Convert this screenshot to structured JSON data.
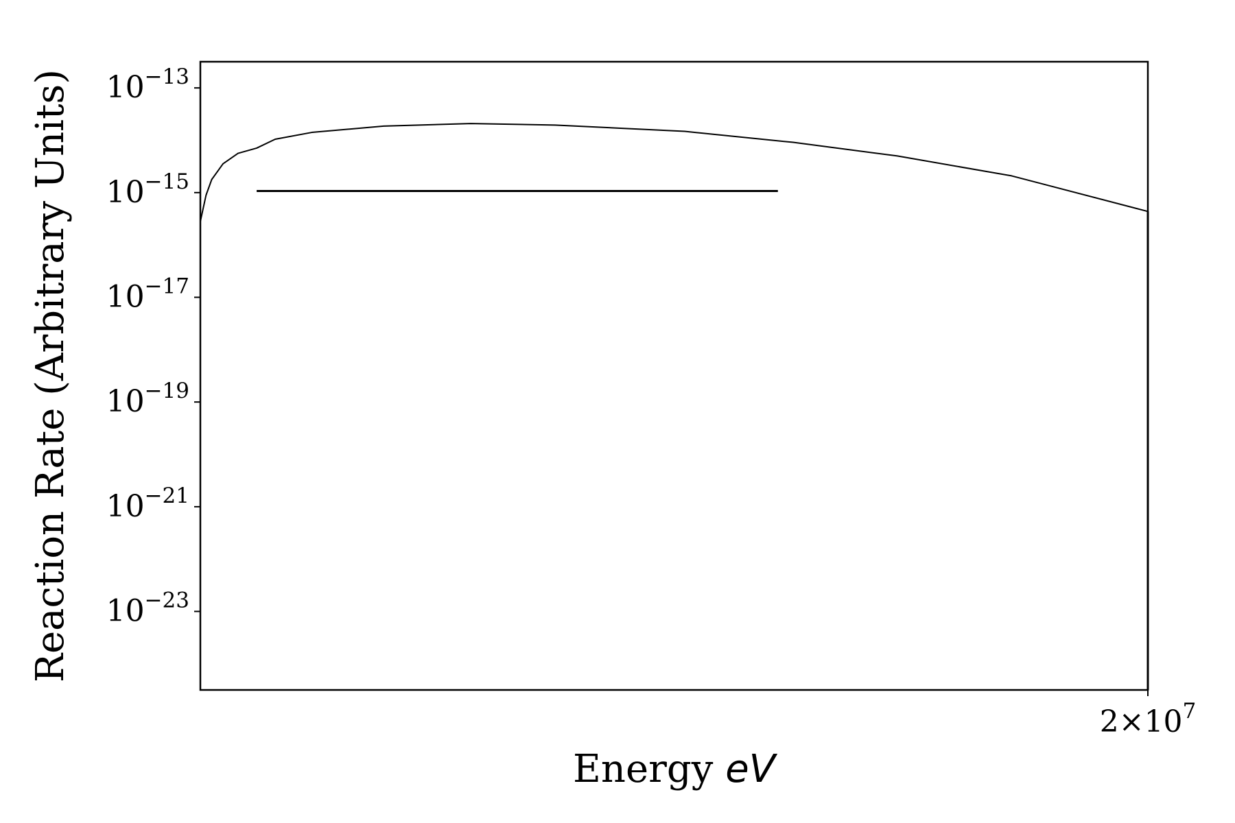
{
  "chart_data": {
    "type": "line",
    "title": "",
    "xlabel_text": "Energy",
    "xlabel_unit": "eV",
    "ylabel": "Reaction Rate (Arbitrary Units)",
    "x_scale": "log",
    "y_scale": "log",
    "xlim": [
      14000000,
      20000000
    ],
    "ylim_exponent": [
      -24.5,
      -12.5
    ],
    "x_ticks": [
      {
        "value": 20000000,
        "mantissa": "2",
        "times": "×",
        "base": "10",
        "exp": "7"
      }
    ],
    "y_ticks": [
      {
        "exponent": -13,
        "base": "10",
        "label": "−13"
      },
      {
        "exponent": -15,
        "base": "10",
        "label": "−15"
      },
      {
        "exponent": -17,
        "base": "10",
        "label": "−17"
      },
      {
        "exponent": -19,
        "base": "10",
        "label": "−19"
      },
      {
        "exponent": -21,
        "base": "10",
        "label": "−21"
      },
      {
        "exponent": -23,
        "base": "10",
        "label": "−23"
      }
    ],
    "series": [
      {
        "kind": "curve",
        "color": "#000000",
        "points": [
          {
            "x": 14000000,
            "log10_y": -15.55
          },
          {
            "x": 14030000,
            "log10_y": -15.05
          },
          {
            "x": 14060000,
            "log10_y": -14.75
          },
          {
            "x": 14120000,
            "log10_y": -14.45
          },
          {
            "x": 14200000,
            "log10_y": -14.25
          },
          {
            "x": 14300000,
            "log10_y": -14.15
          },
          {
            "x": 14400000,
            "log10_y": -13.98
          },
          {
            "x": 14600000,
            "log10_y": -13.85
          },
          {
            "x": 15000000,
            "log10_y": -13.73
          },
          {
            "x": 15500000,
            "log10_y": -13.68
          },
          {
            "x": 16000000,
            "log10_y": -13.71
          },
          {
            "x": 16800000,
            "log10_y": -13.83
          },
          {
            "x": 17500000,
            "log10_y": -14.04
          },
          {
            "x": 18200000,
            "log10_y": -14.3
          },
          {
            "x": 19000000,
            "log10_y": -14.68
          },
          {
            "x": 20000000,
            "log10_y": -15.36
          }
        ]
      },
      {
        "kind": "vertical-drop",
        "color": "#000000",
        "points": [
          {
            "x": 20000000,
            "log10_y": -15.36
          },
          {
            "x": 20000000,
            "log10_y": -24.5
          }
        ]
      },
      {
        "kind": "horizontal-line",
        "color": "#000000",
        "points": [
          {
            "x": 14300000,
            "log10_y": -14.97
          },
          {
            "x": 17400000,
            "log10_y": -14.97
          }
        ]
      }
    ]
  }
}
